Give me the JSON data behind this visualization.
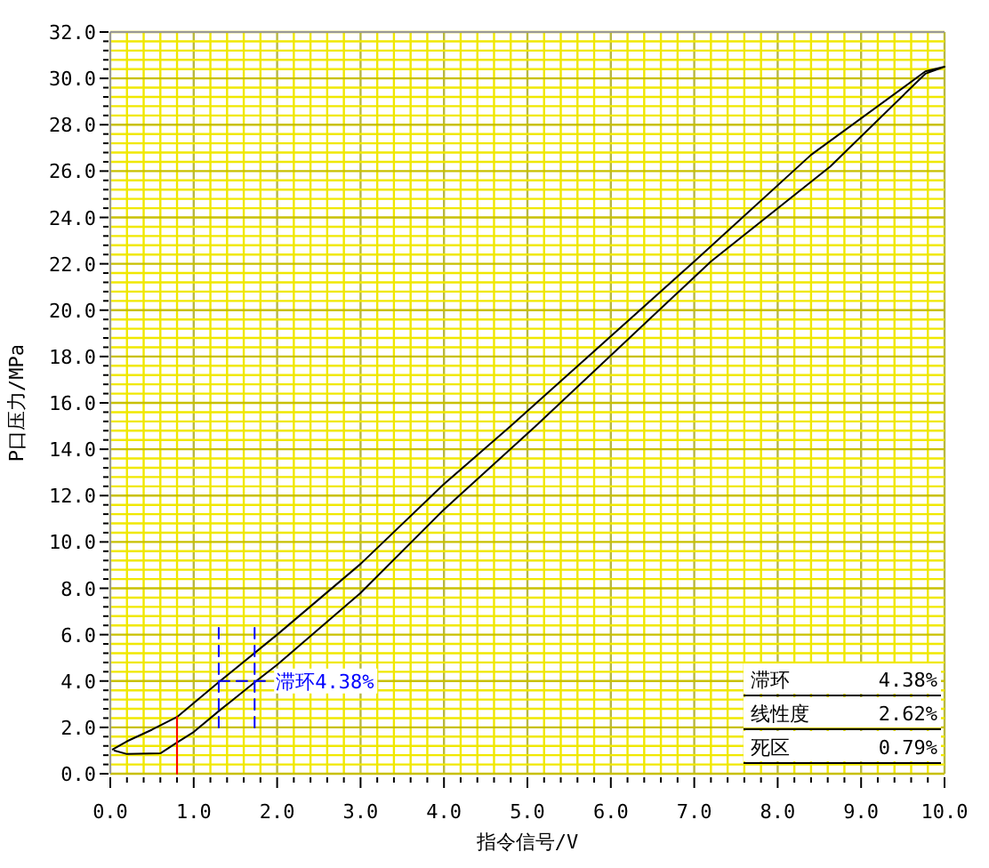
{
  "chart_data": {
    "type": "line",
    "xlabel": "指令信号/V",
    "ylabel": "P口压力/MPa",
    "xlim": [
      0,
      10
    ],
    "ylim": [
      0,
      32
    ],
    "grid": true,
    "marker": "none",
    "line_style": "solid",
    "xticks": [
      {
        "value": 0,
        "label": "0.0"
      },
      {
        "value": 0.2,
        "label": null
      },
      {
        "value": 0.4,
        "label": null
      },
      {
        "value": 0.6,
        "label": null
      },
      {
        "value": 0.8,
        "label": null
      },
      {
        "value": 1,
        "label": "1.0"
      },
      {
        "value": 1.2,
        "label": null
      },
      {
        "value": 1.4,
        "label": null
      },
      {
        "value": 1.6,
        "label": null
      },
      {
        "value": 1.8,
        "label": null
      },
      {
        "value": 2,
        "label": "2.0"
      },
      {
        "value": 2.2,
        "label": null
      },
      {
        "value": 2.4,
        "label": null
      },
      {
        "value": 2.6,
        "label": null
      },
      {
        "value": 2.8,
        "label": null
      },
      {
        "value": 3,
        "label": "3.0"
      },
      {
        "value": 3.2,
        "label": null
      },
      {
        "value": 3.4,
        "label": null
      },
      {
        "value": 3.6,
        "label": null
      },
      {
        "value": 3.8,
        "label": null
      },
      {
        "value": 4,
        "label": "4.0"
      },
      {
        "value": 4.2,
        "label": null
      },
      {
        "value": 4.4,
        "label": null
      },
      {
        "value": 4.6,
        "label": null
      },
      {
        "value": 4.8,
        "label": null
      },
      {
        "value": 5,
        "label": "5.0"
      },
      {
        "value": 5.2,
        "label": null
      },
      {
        "value": 5.4,
        "label": null
      },
      {
        "value": 5.6,
        "label": null
      },
      {
        "value": 5.8,
        "label": null
      },
      {
        "value": 6,
        "label": "6.0"
      },
      {
        "value": 6.2,
        "label": null
      },
      {
        "value": 6.4,
        "label": null
      },
      {
        "value": 6.6,
        "label": null
      },
      {
        "value": 6.8,
        "label": null
      },
      {
        "value": 7,
        "label": "7.0"
      },
      {
        "value": 7.2,
        "label": null
      },
      {
        "value": 7.4,
        "label": null
      },
      {
        "value": 7.6,
        "label": null
      },
      {
        "value": 7.8,
        "label": null
      },
      {
        "value": 8,
        "label": "8.0"
      },
      {
        "value": 8.2,
        "label": null
      },
      {
        "value": 8.4,
        "label": null
      },
      {
        "value": 8.6,
        "label": null
      },
      {
        "value": 8.8,
        "label": null
      },
      {
        "value": 9,
        "label": "9.0"
      },
      {
        "value": 9.2,
        "label": null
      },
      {
        "value": 9.4,
        "label": null
      },
      {
        "value": 9.6,
        "label": null
      },
      {
        "value": 9.8,
        "label": null
      },
      {
        "value": 10,
        "label": "10.0"
      }
    ],
    "yticks": [
      {
        "value": 0,
        "label": "0.0"
      },
      {
        "value": 0.4,
        "label": null
      },
      {
        "value": 0.8,
        "label": null
      },
      {
        "value": 1.2,
        "label": null
      },
      {
        "value": 1.6,
        "label": null
      },
      {
        "value": 2,
        "label": "2.0"
      },
      {
        "value": 2.4,
        "label": null
      },
      {
        "value": 2.8,
        "label": null
      },
      {
        "value": 3.2,
        "label": null
      },
      {
        "value": 3.6,
        "label": null
      },
      {
        "value": 4,
        "label": "4.0"
      },
      {
        "value": 4.4,
        "label": null
      },
      {
        "value": 4.8,
        "label": null
      },
      {
        "value": 5.2,
        "label": null
      },
      {
        "value": 5.6,
        "label": null
      },
      {
        "value": 6,
        "label": "6.0"
      },
      {
        "value": 6.4,
        "label": null
      },
      {
        "value": 6.8,
        "label": null
      },
      {
        "value": 7.2,
        "label": null
      },
      {
        "value": 7.6,
        "label": null
      },
      {
        "value": 8,
        "label": "8.0"
      },
      {
        "value": 8.4,
        "label": null
      },
      {
        "value": 8.8,
        "label": null
      },
      {
        "value": 9.2,
        "label": null
      },
      {
        "value": 9.6,
        "label": null
      },
      {
        "value": 10,
        "label": "10.0"
      },
      {
        "value": 10.4,
        "label": null
      },
      {
        "value": 10.8,
        "label": null
      },
      {
        "value": 11.2,
        "label": null
      },
      {
        "value": 11.6,
        "label": null
      },
      {
        "value": 12,
        "label": "12.0"
      },
      {
        "value": 12.4,
        "label": null
      },
      {
        "value": 12.8,
        "label": null
      },
      {
        "value": 13.2,
        "label": null
      },
      {
        "value": 13.6,
        "label": null
      },
      {
        "value": 14,
        "label": "14.0"
      },
      {
        "value": 14.4,
        "label": null
      },
      {
        "value": 14.8,
        "label": null
      },
      {
        "value": 15.2,
        "label": null
      },
      {
        "value": 15.6,
        "label": null
      },
      {
        "value": 16,
        "label": "16.0"
      },
      {
        "value": 16.4,
        "label": null
      },
      {
        "value": 16.8,
        "label": null
      },
      {
        "value": 17.2,
        "label": null
      },
      {
        "value": 17.6,
        "label": null
      },
      {
        "value": 18,
        "label": "18.0"
      },
      {
        "value": 18.4,
        "label": null
      },
      {
        "value": 18.8,
        "label": null
      },
      {
        "value": 19.2,
        "label": null
      },
      {
        "value": 19.6,
        "label": null
      },
      {
        "value": 20,
        "label": "20.0"
      },
      {
        "value": 20.4,
        "label": null
      },
      {
        "value": 20.8,
        "label": null
      },
      {
        "value": 21.2,
        "label": null
      },
      {
        "value": 21.6,
        "label": null
      },
      {
        "value": 22,
        "label": "22.0"
      },
      {
        "value": 22.4,
        "label": null
      },
      {
        "value": 22.8,
        "label": null
      },
      {
        "value": 23.2,
        "label": null
      },
      {
        "value": 23.6,
        "label": null
      },
      {
        "value": 24,
        "label": "24.0"
      },
      {
        "value": 24.4,
        "label": null
      },
      {
        "value": 24.8,
        "label": null
      },
      {
        "value": 25.2,
        "label": null
      },
      {
        "value": 25.6,
        "label": null
      },
      {
        "value": 26,
        "label": "26.0"
      },
      {
        "value": 26.4,
        "label": null
      },
      {
        "value": 26.8,
        "label": null
      },
      {
        "value": 27.2,
        "label": null
      },
      {
        "value": 27.6,
        "label": null
      },
      {
        "value": 28,
        "label": "28.0"
      },
      {
        "value": 28.4,
        "label": null
      },
      {
        "value": 28.8,
        "label": null
      },
      {
        "value": 29.2,
        "label": null
      },
      {
        "value": 29.6,
        "label": null
      },
      {
        "value": 30,
        "label": "30.0"
      },
      {
        "value": 30.4,
        "label": null
      },
      {
        "value": 30.8,
        "label": null
      },
      {
        "value": 31.2,
        "label": null
      },
      {
        "value": 31.6,
        "label": null
      },
      {
        "value": 32,
        "label": "32.0"
      }
    ],
    "series": [
      {
        "color": "#000000",
        "x": [
          0.05,
          0.2,
          0.6,
          0.8,
          1,
          1.3,
          1.75,
          2,
          3,
          4,
          5.1,
          7.2,
          8.63,
          9.77,
          10,
          9.77,
          8.4,
          7,
          4.8,
          4,
          3,
          2,
          1.3,
          0.8,
          0.5,
          0.2,
          0.03
        ],
        "values": [
          1,
          0.85,
          0.88,
          1.35,
          1.8,
          2.7,
          4,
          4.7,
          7.8,
          11.4,
          15,
          22.1,
          26.2,
          30.2,
          30.5,
          30.3,
          26.7,
          22.1,
          15,
          12.5,
          9.05,
          6,
          3.95,
          2.45,
          1.9,
          1.4,
          1.05
        ]
      },
      {
        "color": "#0000ff",
        "line_style": "dashed",
        "x": [
          1.3,
          1.3
        ],
        "values": [
          2,
          6.4
        ]
      },
      {
        "color": "#0000ff",
        "line_style": "dashed",
        "x": [
          1.73,
          1.73
        ],
        "values": [
          2,
          6.4
        ]
      },
      {
        "color": "#0000ff",
        "line_style": "dashed",
        "x": [
          1.3,
          1.9
        ],
        "values": [
          4,
          4
        ]
      },
      {
        "color": "#ff0000",
        "x": [
          0.8,
          0.8
        ],
        "values": [
          0,
          2.45
        ]
      }
    ],
    "annotations": [
      {
        "text": "滞环4.38%",
        "x": 1.9,
        "y": 4
      },
      "滞环",
      "4.38%",
      "线性度",
      "2.62%",
      "死区",
      "0.79%"
    ]
  }
}
